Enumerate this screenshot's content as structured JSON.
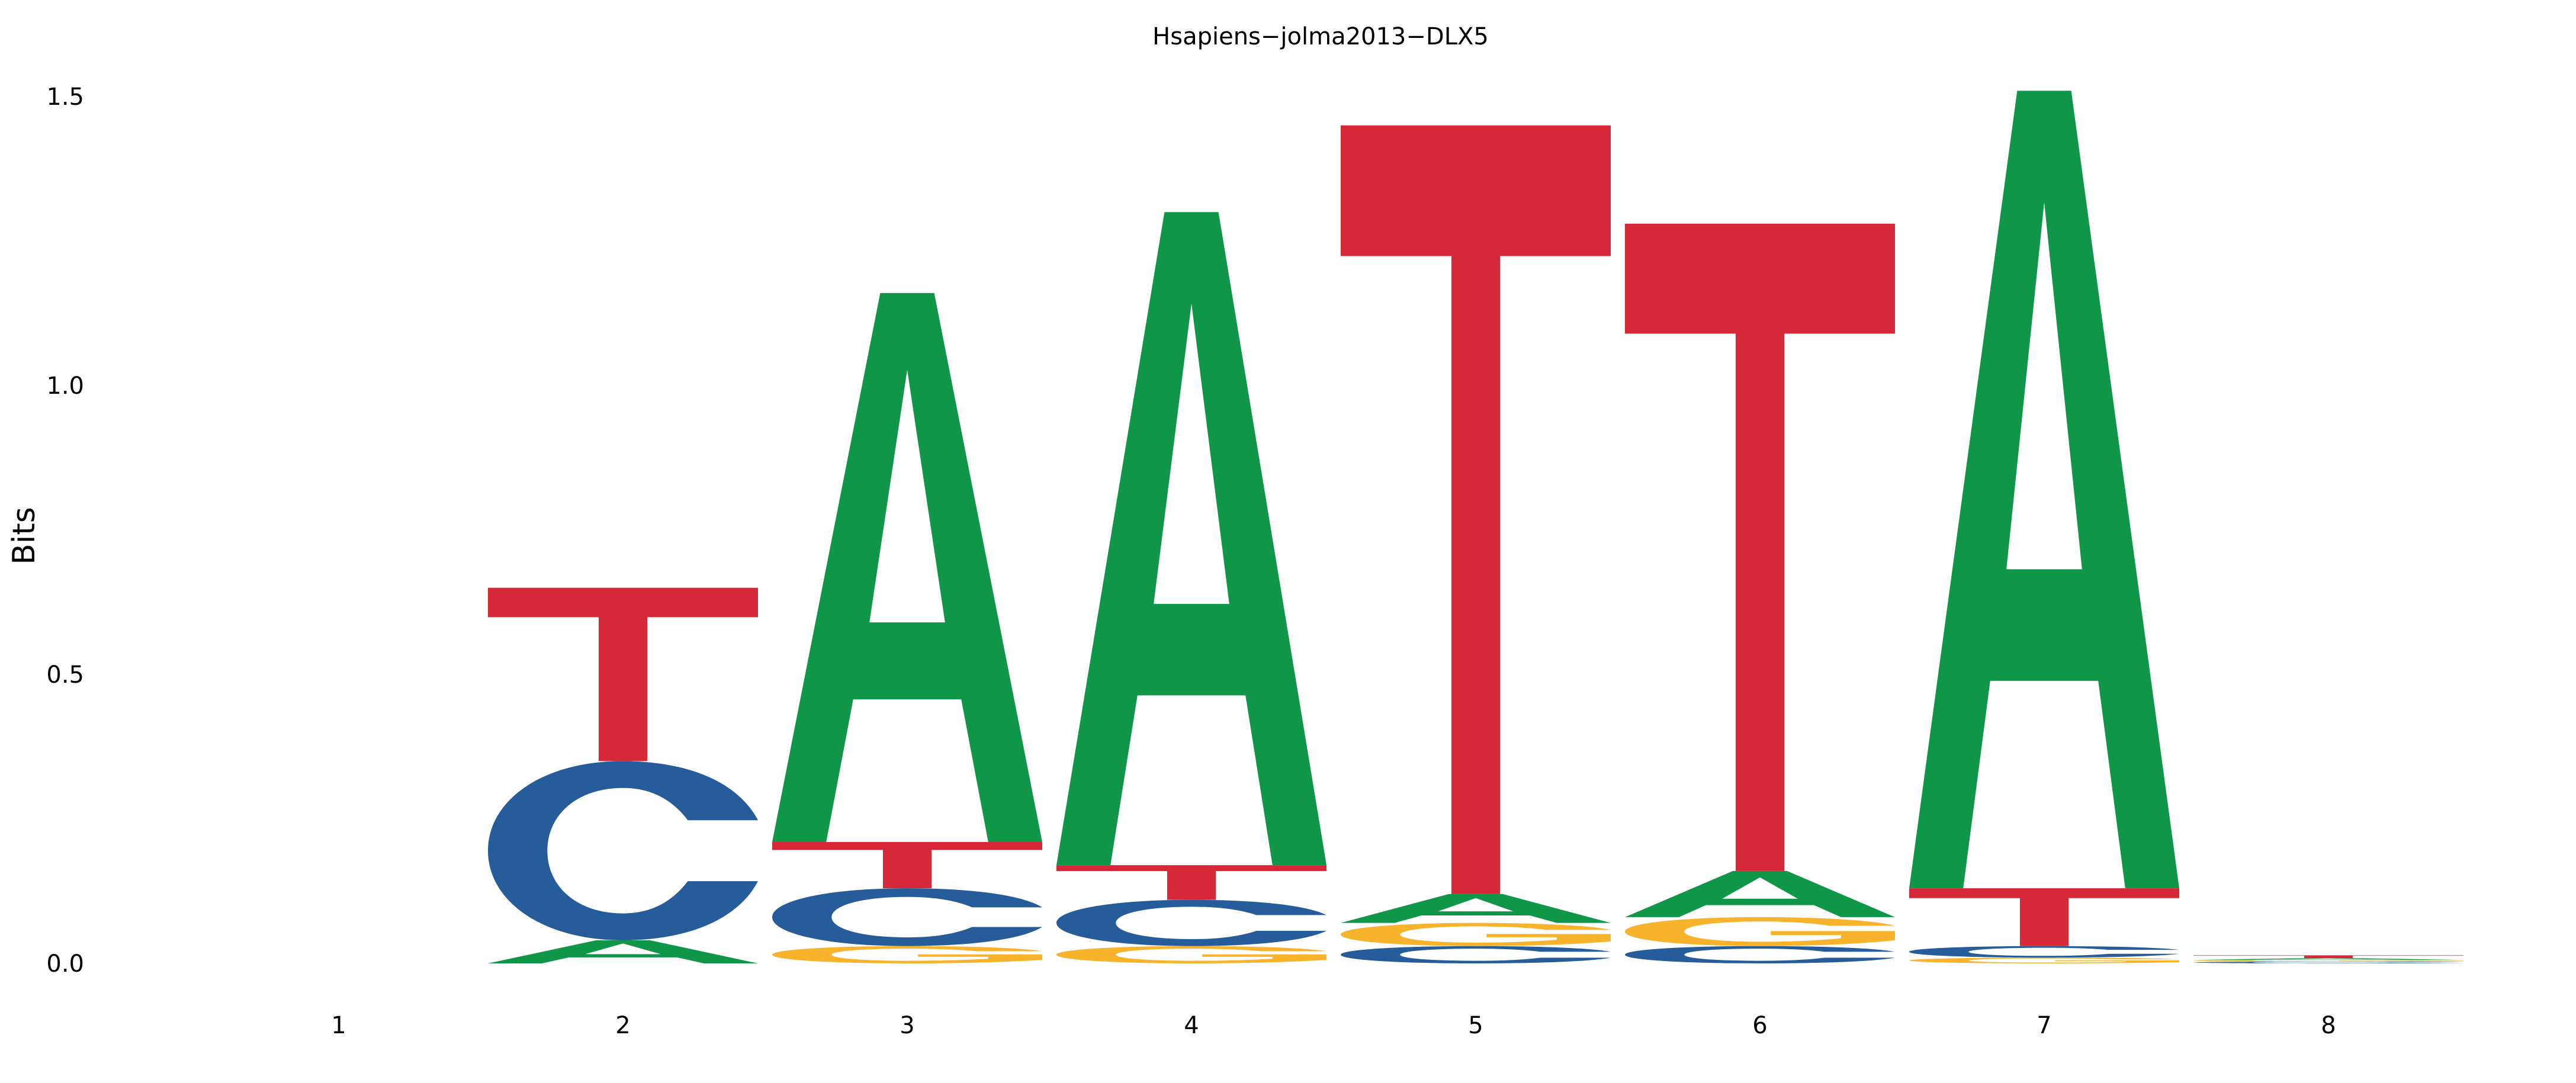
{
  "chart_data": {
    "type": "sequence-logo",
    "title": "Hsapiens−jolma2013−DLX5",
    "ylabel": "Bits",
    "ylim": [
      0,
      1.5
    ],
    "yticks": [
      "0.0",
      "0.5",
      "1.0",
      "1.5"
    ],
    "positions": [
      {
        "label": "1",
        "letters": []
      },
      {
        "label": "2",
        "letters": [
          {
            "base": "A",
            "bits": 0.04
          },
          {
            "base": "C",
            "bits": 0.31
          },
          {
            "base": "T",
            "bits": 0.3
          }
        ]
      },
      {
        "label": "3",
        "letters": [
          {
            "base": "G",
            "bits": 0.03
          },
          {
            "base": "C",
            "bits": 0.1
          },
          {
            "base": "T",
            "bits": 0.08
          },
          {
            "base": "A",
            "bits": 0.95
          }
        ]
      },
      {
        "label": "4",
        "letters": [
          {
            "base": "G",
            "bits": 0.03
          },
          {
            "base": "C",
            "bits": 0.08
          },
          {
            "base": "T",
            "bits": 0.06
          },
          {
            "base": "A",
            "bits": 1.13
          }
        ]
      },
      {
        "label": "5",
        "letters": [
          {
            "base": "C",
            "bits": 0.03
          },
          {
            "base": "G",
            "bits": 0.04
          },
          {
            "base": "A",
            "bits": 0.05
          },
          {
            "base": "T",
            "bits": 1.33
          }
        ]
      },
      {
        "label": "6",
        "letters": [
          {
            "base": "C",
            "bits": 0.03
          },
          {
            "base": "G",
            "bits": 0.05
          },
          {
            "base": "A",
            "bits": 0.08
          },
          {
            "base": "T",
            "bits": 1.12
          }
        ]
      },
      {
        "label": "7",
        "letters": [
          {
            "base": "G",
            "bits": 0.01
          },
          {
            "base": "C",
            "bits": 0.02
          },
          {
            "base": "T",
            "bits": 0.1
          },
          {
            "base": "A",
            "bits": 1.38
          }
        ]
      },
      {
        "label": "8",
        "letters": [
          {
            "base": "C",
            "bits": 0.003
          },
          {
            "base": "G",
            "bits": 0.003
          },
          {
            "base": "A",
            "bits": 0.003
          },
          {
            "base": "T",
            "bits": 0.005
          }
        ]
      }
    ],
    "colors": {
      "A": "#109648",
      "C": "#255C99",
      "G": "#F7B32B",
      "T": "#D62839"
    }
  }
}
